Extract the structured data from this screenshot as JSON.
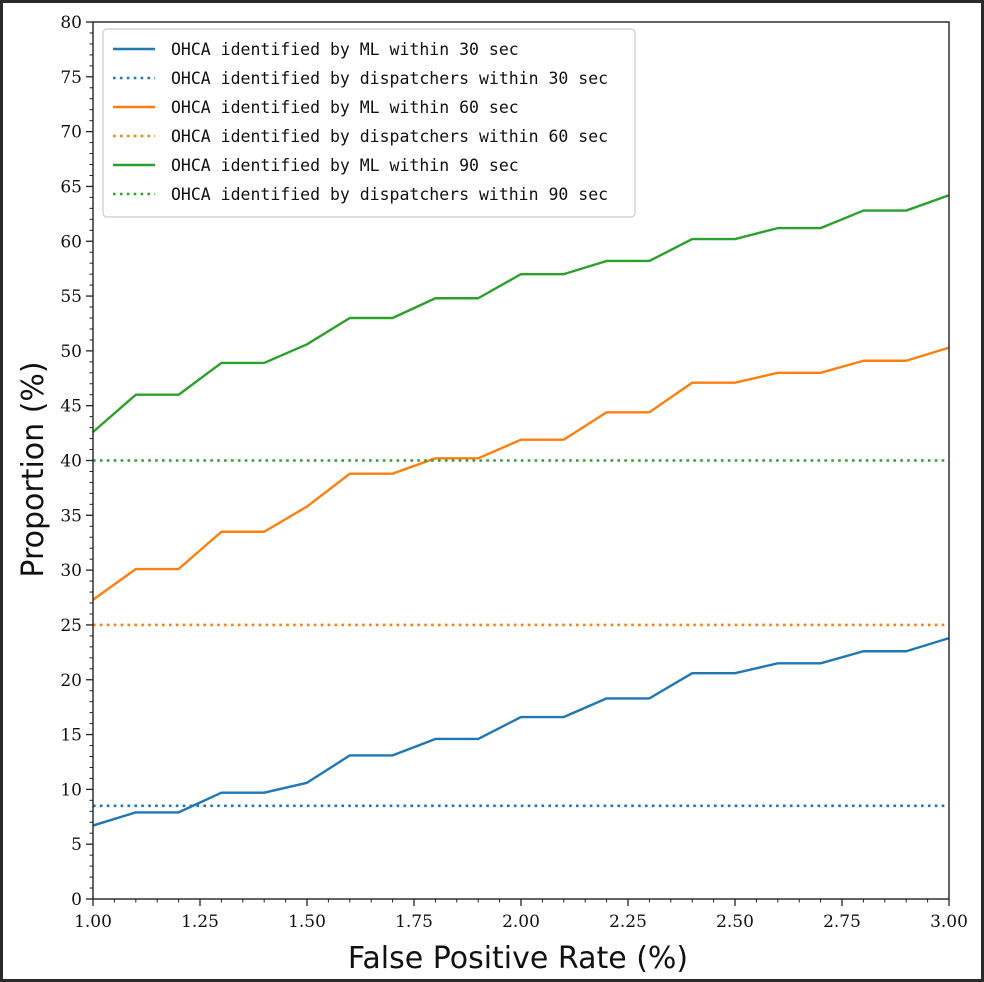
{
  "chart_data": {
    "type": "line",
    "xlabel": "False Positive Rate (%)",
    "ylabel": "Proportion (%)",
    "xlim": [
      1.0,
      3.0
    ],
    "ylim": [
      0,
      80
    ],
    "xticks": [
      "1.00",
      "1.25",
      "1.50",
      "1.75",
      "2.00",
      "2.25",
      "2.50",
      "2.75",
      "3.00"
    ],
    "yticks": [
      "0",
      "5",
      "10",
      "15",
      "20",
      "25",
      "30",
      "35",
      "40",
      "45",
      "50",
      "55",
      "60",
      "65",
      "70",
      "75",
      "80"
    ],
    "grid": false,
    "legend_position": "top-left",
    "x": [
      1.0,
      1.1,
      1.2,
      1.3,
      1.4,
      1.5,
      1.6,
      1.7,
      1.8,
      1.9,
      2.0,
      2.1,
      2.2,
      2.3,
      2.4,
      2.5,
      2.6,
      2.7,
      2.8,
      2.9,
      3.0
    ],
    "series": [
      {
        "name": "OHCA identified by ML within 30 sec",
        "style": "solid",
        "color": "#1f77b4",
        "values": [
          6.7,
          7.9,
          7.9,
          9.7,
          9.7,
          10.6,
          13.1,
          13.1,
          14.6,
          14.6,
          16.6,
          16.6,
          18.3,
          18.3,
          20.6,
          20.6,
          21.5,
          21.5,
          22.6,
          22.6,
          23.8
        ]
      },
      {
        "name": "OHCA identified by dispatchers within 30 sec",
        "style": "dotted",
        "color": "#1f77b4",
        "values": [
          8.5,
          8.5,
          8.5,
          8.5,
          8.5,
          8.5,
          8.5,
          8.5,
          8.5,
          8.5,
          8.5,
          8.5,
          8.5,
          8.5,
          8.5,
          8.5,
          8.5,
          8.5,
          8.5,
          8.5,
          8.5
        ]
      },
      {
        "name": "OHCA identified by ML within 60 sec",
        "style": "solid",
        "color": "#ff7f0e",
        "values": [
          27.3,
          30.1,
          30.1,
          33.5,
          33.5,
          35.8,
          38.8,
          38.8,
          40.2,
          40.2,
          41.9,
          41.9,
          44.4,
          44.4,
          47.1,
          47.1,
          48.0,
          48.0,
          49.1,
          49.1,
          50.3
        ]
      },
      {
        "name": "OHCA identified by dispatchers within 60 sec",
        "style": "dotted",
        "color": "#ff7f0e",
        "values": [
          25,
          25,
          25,
          25,
          25,
          25,
          25,
          25,
          25,
          25,
          25,
          25,
          25,
          25,
          25,
          25,
          25,
          25,
          25,
          25,
          25
        ]
      },
      {
        "name": "OHCA identified by ML within 90 sec",
        "style": "solid",
        "color": "#2ca02c",
        "values": [
          42.6,
          46.0,
          46.0,
          48.9,
          48.9,
          50.6,
          53.0,
          53.0,
          54.8,
          54.8,
          57.0,
          57.0,
          58.2,
          58.2,
          60.2,
          60.2,
          61.2,
          61.2,
          62.8,
          62.8,
          64.2
        ]
      },
      {
        "name": "OHCA identified by dispatchers within 90 sec",
        "style": "dotted",
        "color": "#2ca02c",
        "values": [
          40,
          40,
          40,
          40,
          40,
          40,
          40,
          40,
          40,
          40,
          40,
          40,
          40,
          40,
          40,
          40,
          40,
          40,
          40,
          40,
          40
        ]
      }
    ]
  }
}
